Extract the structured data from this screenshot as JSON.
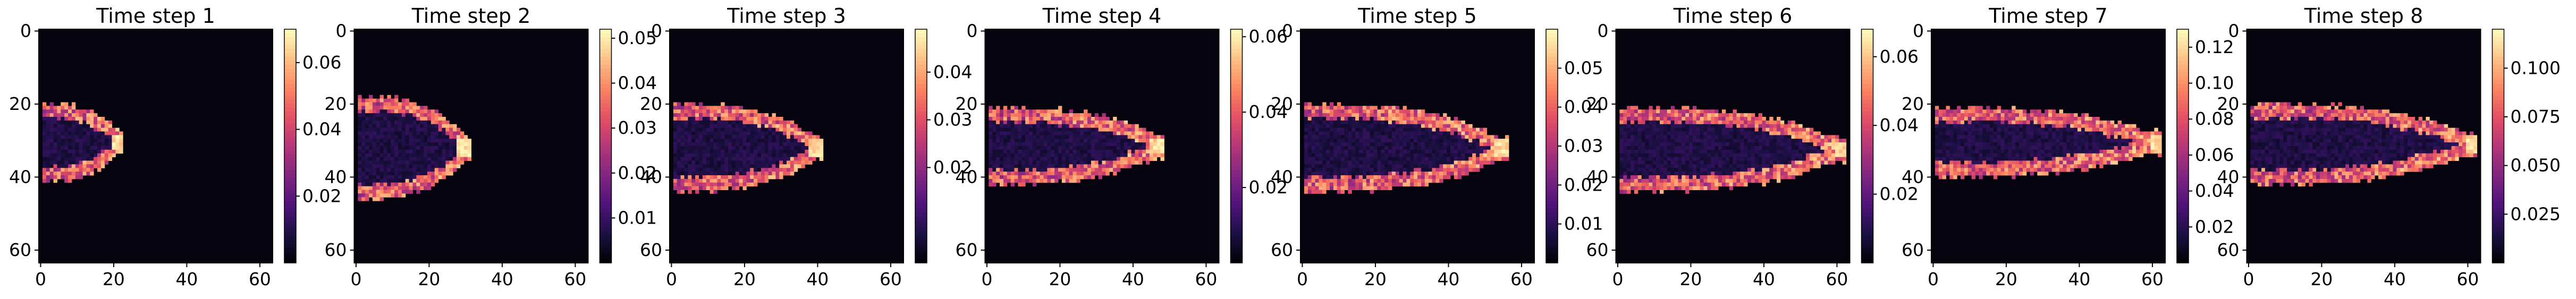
{
  "chart_data": [
    {
      "type": "heatmap",
      "title": "Time step 1",
      "x_ticks": [
        0,
        20,
        40,
        60
      ],
      "y_ticks": [
        0,
        20,
        40,
        60
      ],
      "xlim": [
        0,
        63
      ],
      "ylim": [
        63,
        0
      ],
      "colorbar": {
        "min": 0,
        "max": 0.07,
        "ticks": [
          {
            "value": 0.02,
            "label": "0.02"
          },
          {
            "value": 0.04,
            "label": "0.04"
          },
          {
            "value": 0.06,
            "label": "0.06"
          }
        ]
      },
      "front": {
        "x0": 1,
        "x1": 22,
        "y_min": 22,
        "y_max": 39,
        "peak_x": 20
      }
    },
    {
      "type": "heatmap",
      "title": "Time step 2",
      "x_ticks": [
        0,
        20,
        40,
        60
      ],
      "y_ticks": [
        0,
        20,
        40,
        60
      ],
      "xlim": [
        0,
        63
      ],
      "ylim": [
        63,
        0
      ],
      "colorbar": {
        "min": 0,
        "max": 0.052,
        "ticks": [
          {
            "value": 0.01,
            "label": "0.01"
          },
          {
            "value": 0.02,
            "label": "0.02"
          },
          {
            "value": 0.03,
            "label": "0.03"
          },
          {
            "value": 0.04,
            "label": "0.04"
          },
          {
            "value": 0.05,
            "label": "0.05"
          }
        ]
      },
      "front": {
        "x0": 1,
        "x1": 31,
        "y_min": 20,
        "y_max": 44,
        "peak_x": 28
      }
    },
    {
      "type": "heatmap",
      "title": "Time step 3",
      "x_ticks": [
        0,
        20,
        40,
        60
      ],
      "y_ticks": [
        0,
        20,
        40,
        60
      ],
      "xlim": [
        0,
        63
      ],
      "ylim": [
        63,
        0
      ],
      "colorbar": {
        "min": 0,
        "max": 0.049,
        "ticks": [
          {
            "value": 0.02,
            "label": "0.02"
          },
          {
            "value": 0.03,
            "label": "0.03"
          },
          {
            "value": 0.04,
            "label": "0.04"
          }
        ]
      },
      "front": {
        "x0": 1,
        "x1": 41,
        "y_min": 22,
        "y_max": 42,
        "peak_x": 38
      }
    },
    {
      "type": "heatmap",
      "title": "Time step 4",
      "x_ticks": [
        0,
        20,
        40,
        60
      ],
      "y_ticks": [
        0,
        20,
        40,
        60
      ],
      "xlim": [
        0,
        63
      ],
      "ylim": [
        63,
        0
      ],
      "colorbar": {
        "min": 0,
        "max": 0.062,
        "ticks": [
          {
            "value": 0.02,
            "label": "0.02"
          },
          {
            "value": 0.04,
            "label": "0.04"
          },
          {
            "value": 0.06,
            "label": "0.06"
          }
        ]
      },
      "front": {
        "x0": 1,
        "x1": 48,
        "y_min": 23,
        "y_max": 40,
        "peak_x": 45
      }
    },
    {
      "type": "heatmap",
      "title": "Time step 5",
      "x_ticks": [
        0,
        20,
        40,
        60
      ],
      "y_ticks": [
        0,
        20,
        40,
        60
      ],
      "xlim": [
        0,
        63
      ],
      "ylim": [
        63,
        0
      ],
      "colorbar": {
        "min": 0,
        "max": 0.06,
        "ticks": [
          {
            "value": 0.01,
            "label": "0.01"
          },
          {
            "value": 0.02,
            "label": "0.02"
          },
          {
            "value": 0.03,
            "label": "0.03"
          },
          {
            "value": 0.04,
            "label": "0.04"
          },
          {
            "value": 0.05,
            "label": "0.05"
          }
        ]
      },
      "front": {
        "x0": 1,
        "x1": 56,
        "y_min": 22,
        "y_max": 42,
        "peak_x": 53
      }
    },
    {
      "type": "heatmap",
      "title": "Time step 6",
      "x_ticks": [
        0,
        20,
        40,
        60
      ],
      "y_ticks": [
        0,
        20,
        40,
        60
      ],
      "xlim": [
        0,
        63
      ],
      "ylim": [
        63,
        0
      ],
      "colorbar": {
        "min": 0,
        "max": 0.068,
        "ticks": [
          {
            "value": 0.02,
            "label": "0.02"
          },
          {
            "value": 0.04,
            "label": "0.04"
          },
          {
            "value": 0.06,
            "label": "0.06"
          }
        ]
      },
      "front": {
        "x0": 1,
        "x1": 62,
        "y_min": 23,
        "y_max": 42,
        "peak_x": 60
      }
    },
    {
      "type": "heatmap",
      "title": "Time step 7",
      "x_ticks": [
        0,
        20,
        40,
        60
      ],
      "y_ticks": [
        0,
        20,
        40,
        60
      ],
      "xlim": [
        0,
        63
      ],
      "ylim": [
        63,
        0
      ],
      "colorbar": {
        "min": 0,
        "max": 0.13,
        "ticks": [
          {
            "value": 0.02,
            "label": "0.02"
          },
          {
            "value": 0.04,
            "label": "0.04"
          },
          {
            "value": 0.06,
            "label": "0.06"
          },
          {
            "value": 0.08,
            "label": "0.08"
          },
          {
            "value": 0.1,
            "label": "0.10"
          },
          {
            "value": 0.12,
            "label": "0.12"
          }
        ]
      },
      "front": {
        "x0": 1,
        "x1": 62,
        "y_min": 23,
        "y_max": 38,
        "peak_x": 60
      }
    },
    {
      "type": "heatmap",
      "title": "Time step 8",
      "x_ticks": [
        0,
        20,
        40,
        60
      ],
      "y_ticks": [
        0,
        20,
        40,
        60
      ],
      "xlim": [
        0,
        63
      ],
      "ylim": [
        63,
        0
      ],
      "colorbar": {
        "min": 0,
        "max": 0.12,
        "ticks": [
          {
            "value": 0.025,
            "label": "0.025"
          },
          {
            "value": 0.05,
            "label": "0.050"
          },
          {
            "value": 0.075,
            "label": "0.075"
          },
          {
            "value": 0.1,
            "label": "0.100"
          }
        ]
      },
      "front": {
        "x0": 1,
        "x1": 62,
        "y_min": 22,
        "y_max": 40,
        "peak_x": 60
      }
    }
  ],
  "colormap": "magma"
}
